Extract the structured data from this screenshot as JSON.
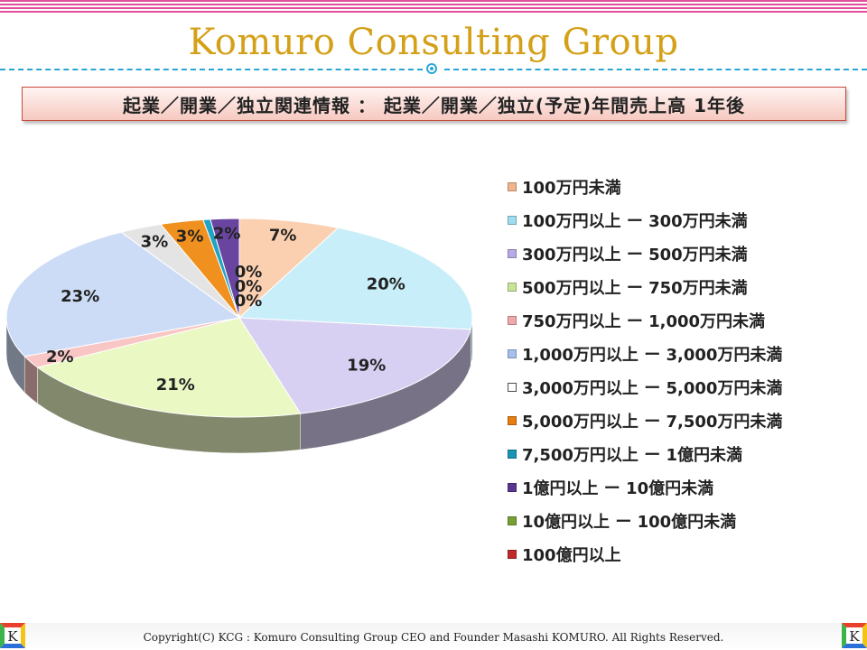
{
  "header": {
    "brand": "Komuro Consulting Group",
    "subtitle": "起業／開業／独立関連情報 ： 起業／開業／独立(予定)年間売上高 1年後"
  },
  "chart_data": {
    "type": "pie",
    "title": "",
    "legend_position": "right",
    "categories": [
      "100万円未満",
      "100万円以上 ー 300万円未満",
      "300万円以上 ー 500万円未満",
      "500万円以上 ー 750万円未満",
      "750万円以上 ー 1,000万円未満",
      "1,000万円以上 ー 3,000万円未満",
      "3,000万円以上 ー 5,000万円未満",
      "5,000万円以上 ー 7,500万円未満",
      "7,500万円以上 ー 1億円未満",
      "1億円以上 ー 10億円未満",
      "10億円以上 ー 100億円未満",
      "100億円以上"
    ],
    "values": [
      7,
      20,
      19,
      21,
      2,
      23,
      3,
      3,
      0.5,
      2,
      0,
      0
    ],
    "data_labels": [
      "7%",
      "20%",
      "19%",
      "21%",
      "2%",
      "23%",
      "3%",
      "3%",
      "0%",
      "2%",
      "0%",
      "0%"
    ],
    "colors": [
      "#fbd0b0",
      "#c8eef9",
      "#d8d0f2",
      "#eaf8c4",
      "#f9c6c6",
      "#cddcf6",
      "#e4e4e4",
      "#f0901e",
      "#1fa4c4",
      "#6a45a0",
      "#86ad48",
      "#c83c3c"
    ],
    "legend_swatch_colors": [
      "#f2b48a",
      "#9edcf0",
      "#b8aae6",
      "#c8e496",
      "#f0a8a8",
      "#a6c0ee",
      "#ffffff",
      "#e67e10",
      "#1994b4",
      "#5a3690",
      "#76a034",
      "#c02a2a"
    ]
  },
  "footer": {
    "copyright": "Copyright(C) KCG : Komuro Consulting Group CEO and Founder Masashi KOMURO. All Rights Reserved.",
    "logo_letter": "K"
  }
}
